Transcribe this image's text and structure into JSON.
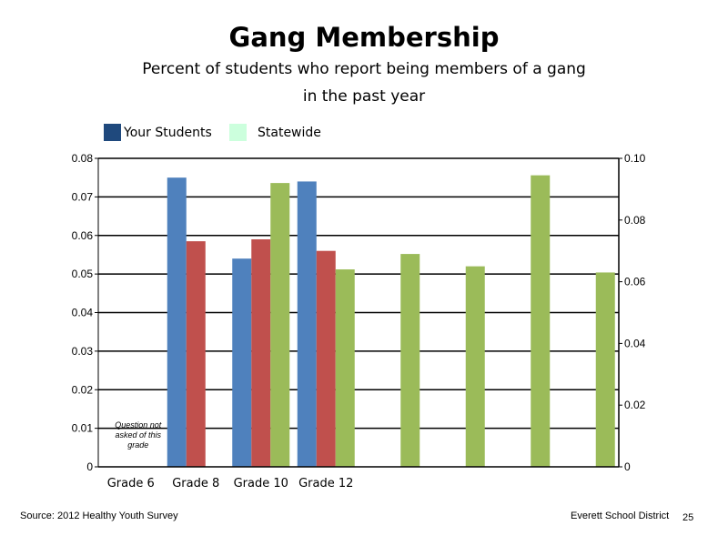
{
  "page": {
    "title": "Gang Membership",
    "subtitle_line1": "Percent of students who report being members of a gang",
    "subtitle_line2": "in the past year",
    "source": "Source: 2012 Healthy Youth Survey",
    "district": "Everett School District",
    "page_number": "25"
  },
  "legend": [
    {
      "label": "Your Students",
      "color": "#1f497d"
    },
    {
      "label": "Statewide",
      "color": "#ccffdd"
    }
  ],
  "chart_data": {
    "type": "bar",
    "categories": [
      "Grade 6",
      "Grade 8",
      "Grade 10",
      "Grade 12",
      "",
      "",
      "",
      ""
    ],
    "series": [
      {
        "color": "#4f81bd",
        "axis": "left",
        "values": [
          null,
          0.075,
          0.054,
          0.074,
          null,
          null,
          null,
          null
        ]
      },
      {
        "color": "#c0504d",
        "axis": "left",
        "values": [
          null,
          0.0585,
          0.059,
          0.056,
          null,
          null,
          null,
          null
        ]
      },
      {
        "color": "#9bbb59",
        "axis": "right",
        "values": [
          null,
          null,
          0.092,
          0.064,
          0.069,
          0.065,
          0.0945,
          0.063
        ]
      }
    ],
    "y_left": {
      "lim": [
        0,
        0.08
      ],
      "ticks": [
        "0",
        "0.01",
        "0.02",
        "0.03",
        "0.04",
        "0.05",
        "0.06",
        "0.07",
        "0.08"
      ]
    },
    "y_right": {
      "lim": [
        0,
        0.1
      ],
      "ticks": [
        "0",
        "0.02",
        "0.04",
        "0.06",
        "0.08",
        "0.10"
      ]
    },
    "gridlines": true,
    "annotation": [
      "Question not",
      "asked of this",
      "grade"
    ]
  }
}
